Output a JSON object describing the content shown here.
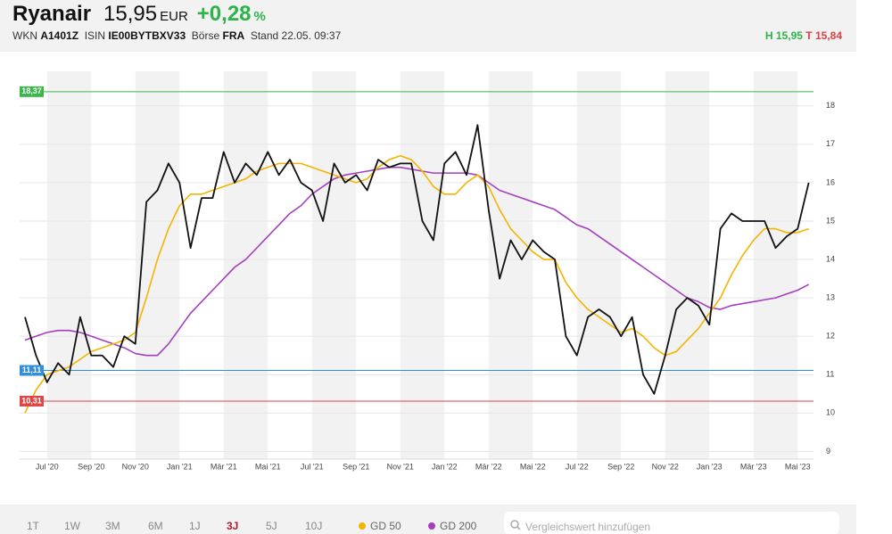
{
  "header": {
    "name": "Ryanair",
    "price": "15,95",
    "currency": "EUR",
    "change": "+0,28",
    "change_unit": "%",
    "wkn_label": "WKN",
    "wkn": "A1401Z",
    "isin_label": "ISIN",
    "isin": "IE00BYTBXV33",
    "exchange_label": "Börse",
    "exchange": "FRA",
    "stand": "Stand 22.05. 09:37",
    "high": "H 15,95",
    "low": "T 15,84"
  },
  "chart_data": {
    "type": "line",
    "categories": [
      null,
      null,
      "Jul '20",
      null,
      null,
      null,
      "Sep '20",
      null,
      null,
      null,
      "Nov '20",
      null,
      null,
      null,
      "Jan '21",
      null,
      null,
      null,
      "Mär '21",
      null,
      null,
      null,
      "Mai '21",
      null,
      null,
      null,
      "Jul '21",
      null,
      null,
      null,
      "Sep '21",
      null,
      null,
      null,
      "Nov '21",
      null,
      null,
      null,
      "Jan '22",
      null,
      null,
      null,
      "Mär '22",
      null,
      null,
      null,
      "Mai '22",
      null,
      null,
      null,
      "Jul '22",
      null,
      null,
      null,
      "Sep '22",
      null,
      null,
      null,
      "Nov '22",
      null,
      null,
      null,
      "Jan '23",
      null,
      null,
      null,
      "Mär '23",
      null,
      null,
      null,
      "Mai '23",
      null
    ],
    "series": [
      {
        "color": "#111111",
        "values": [
          12.5,
          11.5,
          10.8,
          11.3,
          11.0,
          12.5,
          11.5,
          11.5,
          11.2,
          12.0,
          11.8,
          15.5,
          15.8,
          16.5,
          16.0,
          14.3,
          15.6,
          15.6,
          16.8,
          16.0,
          16.5,
          16.2,
          16.8,
          16.2,
          16.6,
          16.0,
          15.8,
          15.0,
          16.5,
          16.0,
          16.2,
          15.8,
          16.6,
          16.4,
          16.5,
          16.5,
          15.0,
          14.5,
          16.5,
          16.8,
          16.2,
          17.5,
          15.3,
          13.5,
          14.5,
          14.0,
          14.5,
          14.2,
          14.0,
          12.0,
          11.5,
          12.5,
          12.7,
          12.5,
          12.0,
          12.5,
          11.0,
          10.5,
          11.5,
          12.7,
          13.0,
          12.8,
          12.3,
          14.8,
          15.2,
          15.0,
          15.0,
          15.0,
          14.3,
          14.6,
          14.8,
          16.0
        ]
      },
      {
        "name": "GD 50",
        "color": "#f5b400",
        "values": [
          10.0,
          10.6,
          11.0,
          11.1,
          11.2,
          11.4,
          11.6,
          11.7,
          11.8,
          11.9,
          12.1,
          13.0,
          14.0,
          14.8,
          15.4,
          15.7,
          15.7,
          15.8,
          15.9,
          16.0,
          16.1,
          16.3,
          16.4,
          16.5,
          16.5,
          16.5,
          16.4,
          16.3,
          16.2,
          16.1,
          16.0,
          16.1,
          16.4,
          16.6,
          16.7,
          16.6,
          16.3,
          15.9,
          15.7,
          15.7,
          16.0,
          16.2,
          15.9,
          15.3,
          14.8,
          14.5,
          14.2,
          14.0,
          14.0,
          13.4,
          13.0,
          12.7,
          12.5,
          12.3,
          12.1,
          12.2,
          12.0,
          11.7,
          11.5,
          11.6,
          11.9,
          12.2,
          12.6,
          13.0,
          13.6,
          14.1,
          14.5,
          14.8,
          14.8,
          14.7,
          14.7,
          14.8
        ]
      },
      {
        "name": "GD 200",
        "color": "#a43fc0",
        "values": [
          11.9,
          12.0,
          12.1,
          12.15,
          12.15,
          12.1,
          12.0,
          11.9,
          11.8,
          11.7,
          11.55,
          11.5,
          11.5,
          11.8,
          12.2,
          12.6,
          12.9,
          13.2,
          13.5,
          13.8,
          14.0,
          14.3,
          14.6,
          14.9,
          15.2,
          15.4,
          15.7,
          15.9,
          16.1,
          16.2,
          16.25,
          16.3,
          16.35,
          16.4,
          16.4,
          16.35,
          16.3,
          16.25,
          16.25,
          16.25,
          16.25,
          16.2,
          16.0,
          15.8,
          15.7,
          15.6,
          15.5,
          15.4,
          15.3,
          15.1,
          14.9,
          14.8,
          14.6,
          14.4,
          14.2,
          14.0,
          13.8,
          13.6,
          13.4,
          13.2,
          13.0,
          12.9,
          12.75,
          12.7,
          12.8,
          12.85,
          12.9,
          12.95,
          13.0,
          13.1,
          13.2,
          13.35
        ]
      }
    ],
    "ylim": [
      8.8,
      18.9
    ],
    "yticks": [
      9,
      10,
      11,
      12,
      13,
      14,
      15,
      16,
      17,
      18
    ],
    "grid": true,
    "reference_lines": [
      {
        "value": 18.37,
        "label": "18,37",
        "color": "#3cb54a"
      },
      {
        "value": 11.11,
        "label": "11,11",
        "color": "#2f8fd8"
      },
      {
        "value": 10.31,
        "label": "10,31",
        "color": "#e04444"
      }
    ]
  },
  "controls": {
    "ranges": [
      "1T",
      "1W",
      "3M",
      "6M",
      "1J",
      "3J",
      "5J",
      "10J"
    ],
    "active_range": 5,
    "search_placeholder": "Vergleichswert hinzufügen"
  }
}
